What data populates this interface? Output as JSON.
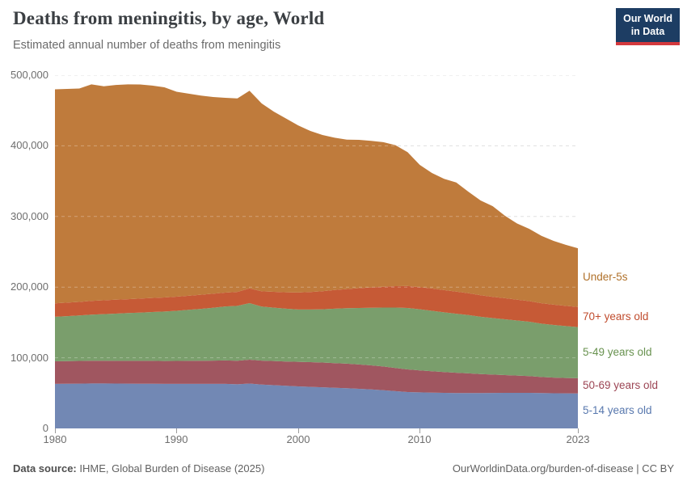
{
  "header": {
    "title": "Deaths from meningitis, by age, World",
    "subtitle": "Estimated annual number of deaths from meningitis",
    "logo": {
      "line1": "Our World",
      "line2": "in Data"
    }
  },
  "footer": {
    "source_label": "Data source:",
    "source_text": " IHME, Global Burden of Disease (2025)",
    "credit": "OurWorldinData.org/burden-of-disease | CC BY"
  },
  "chart_data": {
    "type": "area",
    "stacked": true,
    "title": "Deaths from meningitis, by age, World",
    "xlabel": "",
    "ylabel": "Estimated annual number of deaths",
    "xlim": [
      1980,
      2023
    ],
    "ylim": [
      0,
      500000
    ],
    "xticks": [
      1980,
      1990,
      2000,
      2010,
      2023
    ],
    "yticks": [
      0,
      100000,
      200000,
      300000,
      400000,
      500000
    ],
    "grid": "horizontal-dashed",
    "legend_position": "right-inline",
    "x": [
      1980,
      1981,
      1982,
      1983,
      1984,
      1985,
      1986,
      1987,
      1988,
      1989,
      1990,
      1991,
      1992,
      1993,
      1994,
      1995,
      1996,
      1997,
      1998,
      1999,
      2000,
      2001,
      2002,
      2003,
      2004,
      2005,
      2006,
      2007,
      2008,
      2009,
      2010,
      2011,
      2012,
      2013,
      2014,
      2015,
      2016,
      2017,
      2018,
      2019,
      2020,
      2021,
      2022,
      2023
    ],
    "series": [
      {
        "name": "5-14 years old",
        "color": "#7288b4",
        "label_color": "#5878ae",
        "values": [
          63000,
          63200,
          63400,
          63600,
          63600,
          63500,
          63400,
          63300,
          63200,
          63000,
          63000,
          63000,
          63000,
          63000,
          63000,
          62500,
          63500,
          62000,
          61200,
          60300,
          59500,
          58800,
          58200,
          57600,
          56900,
          56100,
          55200,
          54100,
          52800,
          51500,
          51000,
          50600,
          50300,
          50100,
          50000,
          50000,
          50200,
          50300,
          50400,
          50400,
          50000,
          49800,
          49600,
          49500
        ]
      },
      {
        "name": "50-69 years old",
        "color": "#a05660",
        "label_color": "#9c4554",
        "values": [
          32000,
          32000,
          32100,
          32200,
          32200,
          32200,
          32300,
          32300,
          32400,
          32400,
          32500,
          32600,
          32800,
          33000,
          33200,
          33400,
          33800,
          34000,
          34200,
          34400,
          34800,
          35000,
          35000,
          34900,
          34700,
          34400,
          34000,
          33500,
          32800,
          32000,
          31200,
          30400,
          29500,
          28700,
          27900,
          27000,
          26000,
          25200,
          24400,
          23600,
          22800,
          22200,
          21800,
          21500
        ]
      },
      {
        "name": "5-49 years old",
        "color": "#7a9e6c",
        "label_color": "#68924f",
        "values": [
          63000,
          63700,
          64400,
          65200,
          66000,
          66800,
          67600,
          68400,
          69200,
          70000,
          71000,
          72200,
          73400,
          74800,
          76500,
          77500,
          80000,
          76500,
          75500,
          74800,
          74000,
          74500,
          75500,
          77000,
          78500,
          80000,
          81500,
          83500,
          85500,
          87000,
          86500,
          85500,
          84500,
          83500,
          82500,
          81000,
          80000,
          79000,
          78000,
          77000,
          75500,
          74500,
          73500,
          72500
        ]
      },
      {
        "name": "70+ years old",
        "color": "#c65a36",
        "label_color": "#c04c2e",
        "values": [
          19000,
          19100,
          19200,
          19400,
          19500,
          19600,
          19700,
          19800,
          19900,
          19900,
          20000,
          20000,
          20000,
          19800,
          19500,
          19800,
          21000,
          21500,
          22500,
          23200,
          24000,
          24800,
          25600,
          26400,
          27200,
          28000,
          28800,
          29500,
          30300,
          31000,
          31300,
          31500,
          31500,
          31300,
          31000,
          30600,
          30100,
          29800,
          29500,
          29200,
          28900,
          28700,
          28600,
          28500
        ]
      },
      {
        "name": "Under-5s",
        "color": "#bf7b3c",
        "label_color": "#b0712a",
        "values": [
          303000,
          302500,
          302000,
          306500,
          303000,
          304000,
          304000,
          303000,
          300500,
          297500,
          290000,
          286000,
          282000,
          278500,
          275800,
          273800,
          279700,
          266000,
          255000,
          246000,
          236700,
          228000,
          221000,
          215500,
          211500,
          210000,
          207500,
          204500,
          199500,
          189500,
          173000,
          163500,
          157500,
          154400,
          143600,
          134000,
          128200,
          116700,
          107700,
          102300,
          95300,
          90300,
          86300,
          83000
        ]
      }
    ]
  }
}
